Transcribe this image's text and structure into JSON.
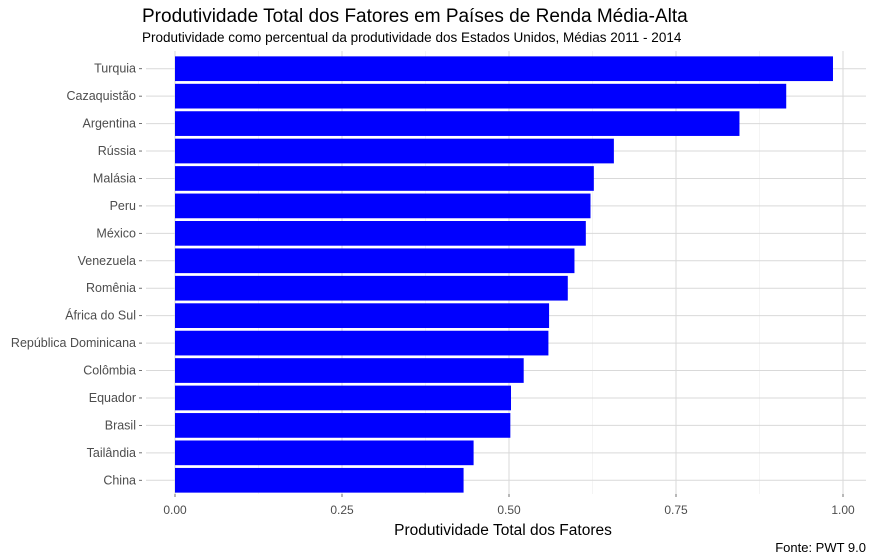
{
  "chart_data": {
    "type": "bar",
    "orientation": "horizontal",
    "title": "Produtividade Total dos Fatores em Países de Renda Média-Alta",
    "subtitle": "Produtividade como percentual da produtividade dos Estados Unidos, Médias 2011 - 2014",
    "caption": "Fonte: PWT 9.0",
    "xlabel": "Produtividade Total dos Fatores",
    "ylabel": "",
    "xlim": [
      0,
      1.0
    ],
    "xticks": [
      "0.00",
      "0.25",
      "0.50",
      "0.75",
      "1.00"
    ],
    "grid": true,
    "bar_color": "#0000ff",
    "categories": [
      "Turquia",
      "Cazaquistão",
      "Argentina",
      "Rússia",
      "Malásia",
      "Peru",
      "México",
      "Venezuela",
      "Romênia",
      "África do Sul",
      "República Dominicana",
      "Colômbia",
      "Equador",
      "Brasil",
      "Tailândia",
      "China"
    ],
    "values": [
      0.985,
      0.915,
      0.845,
      0.657,
      0.627,
      0.622,
      0.615,
      0.598,
      0.588,
      0.56,
      0.559,
      0.522,
      0.503,
      0.502,
      0.447,
      0.432
    ]
  }
}
